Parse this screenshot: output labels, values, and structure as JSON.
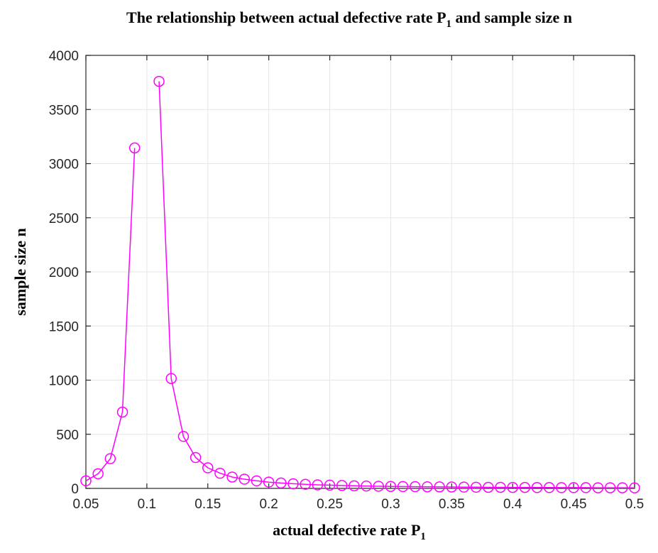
{
  "chart_data": {
    "type": "line",
    "title_main": "The relationship between actual defective rate P",
    "title_sub": "1",
    "title_tail": " and sample size n",
    "xlabel_main": "actual defective rate P",
    "xlabel_sub": "1",
    "ylabel": "sample size n",
    "xlim": [
      0.05,
      0.5
    ],
    "ylim": [
      0,
      4000
    ],
    "xticks": [
      0.05,
      0.1,
      0.15,
      0.2,
      0.25,
      0.3,
      0.35,
      0.4,
      0.45,
      0.5
    ],
    "xtick_labels": [
      "0.05",
      "0.1",
      "0.15",
      "0.2",
      "0.25",
      "0.3",
      "0.35",
      "0.4",
      "0.45",
      "0.5"
    ],
    "yticks": [
      0,
      500,
      1000,
      1500,
      2000,
      2500,
      3000,
      3500,
      4000
    ],
    "ytick_labels": [
      "0",
      "500",
      "1000",
      "1500",
      "2000",
      "2500",
      "3000",
      "3500",
      "4000"
    ],
    "grid": true,
    "color": "#ff00ff",
    "marker": "circle",
    "segments": [
      {
        "x": [
          0.05,
          0.06,
          0.07,
          0.08,
          0.09
        ],
        "y": [
          70,
          135,
          275,
          705,
          3145
        ]
      },
      {
        "x": [
          0.11,
          0.12,
          0.13,
          0.14,
          0.15,
          0.16,
          0.17,
          0.18,
          0.19,
          0.2,
          0.21,
          0.22,
          0.23,
          0.24,
          0.25,
          0.26,
          0.27,
          0.28,
          0.29,
          0.3,
          0.31,
          0.32,
          0.33,
          0.34,
          0.35,
          0.36,
          0.37,
          0.38,
          0.39,
          0.4,
          0.41,
          0.42,
          0.43,
          0.44,
          0.45,
          0.46,
          0.47,
          0.48,
          0.49,
          0.5
        ],
        "y": [
          3760,
          1015,
          480,
          285,
          190,
          140,
          105,
          85,
          70,
          58,
          50,
          43,
          38,
          33,
          30,
          27,
          24,
          22,
          20,
          18,
          17,
          16,
          15,
          14,
          13,
          12,
          11,
          10,
          10,
          9,
          9,
          8,
          8,
          7,
          7,
          7,
          6,
          6,
          6,
          5
        ]
      }
    ]
  }
}
